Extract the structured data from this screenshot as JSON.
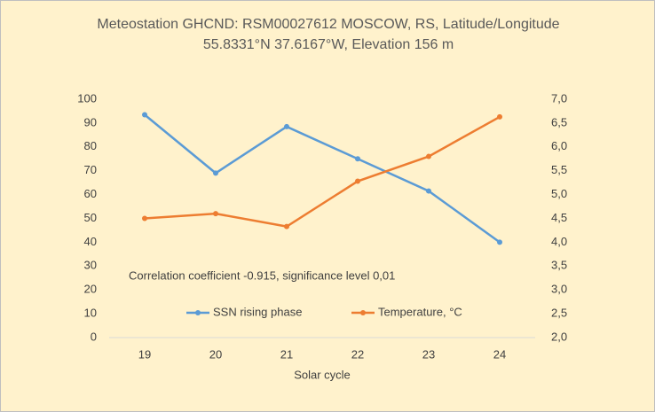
{
  "chart_data": {
    "type": "line",
    "title": [
      "Meteostation GHCND: RSM00027612 MOSCOW, RS,  Latitude/Longitude",
      "55.8331°N 37.6167°W, Elevation 156 m"
    ],
    "annotation": "Correlation coefficient -0.915, significance level 0,01",
    "x_label": "Solar cycle",
    "categories": [
      "19",
      "20",
      "21",
      "22",
      "23",
      "24"
    ],
    "series": [
      {
        "name": "SSN rising phase",
        "color": "#5b9bd5",
        "values": [
          93.5,
          69,
          88.5,
          75,
          61.5,
          40
        ]
      },
      {
        "name": "Temperature, °C",
        "color": "#ed7d31",
        "axis": "y2",
        "values": [
          4.5,
          4.6,
          4.33,
          5.28,
          5.8,
          6.63
        ]
      }
    ],
    "ylim": [
      0,
      100
    ],
    "yticks": [
      0,
      10,
      20,
      30,
      40,
      50,
      60,
      70,
      80,
      90,
      100
    ],
    "y2lim": [
      2,
      7
    ],
    "y2ticks": [
      {
        "value": 2,
        "label": "2,0"
      },
      {
        "value": 2.5,
        "label": "2,5"
      },
      {
        "value": 3,
        "label": "3,0"
      },
      {
        "value": 3.5,
        "label": "3,5"
      },
      {
        "value": 4,
        "label": "4,0"
      },
      {
        "value": 4.5,
        "label": "4,5"
      },
      {
        "value": 5,
        "label": "5,0"
      },
      {
        "value": 5.5,
        "label": "5,5"
      },
      {
        "value": 6,
        "label": "6,0"
      },
      {
        "value": 6.5,
        "label": "6,5"
      },
      {
        "value": 7,
        "label": "7,0"
      }
    ],
    "legend": "bottom"
  }
}
